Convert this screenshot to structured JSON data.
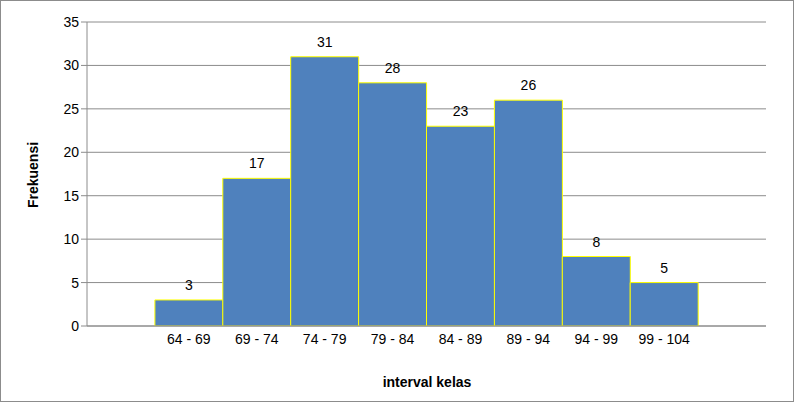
{
  "chart_data": {
    "type": "bar",
    "y_label": "Frekuensi",
    "x_label": "interval kelas",
    "categories": [
      null,
      "64 - 69",
      "69 - 74",
      "74 - 79",
      "79 - 84",
      "84 - 89",
      "89 - 94",
      "94 - 99",
      "99 - 104",
      null
    ],
    "values": [
      null,
      3,
      17,
      31,
      28,
      23,
      26,
      8,
      5,
      null
    ],
    "color": "#4f81bd",
    "ylim": [
      0,
      35
    ],
    "yticks": [
      0,
      5,
      10,
      15,
      20,
      25,
      30,
      35
    ],
    "grid": true,
    "data_labels": true
  }
}
